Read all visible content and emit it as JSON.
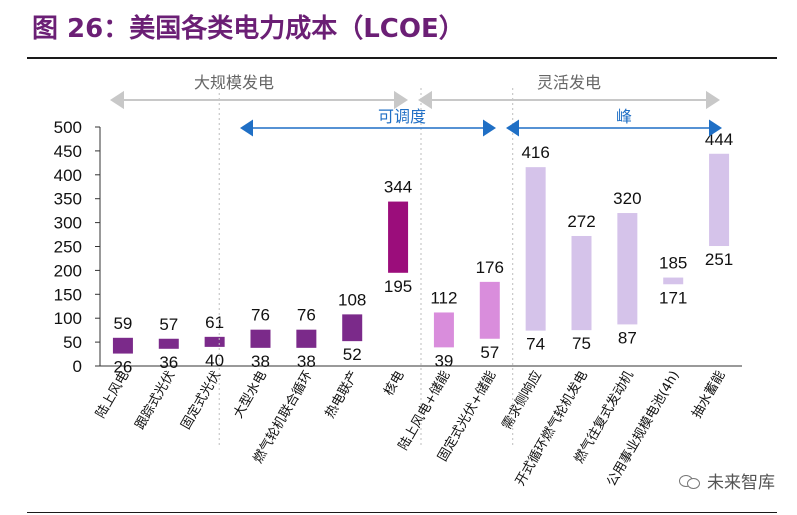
{
  "title": "图 26：美国各类电力成本（LCOE）",
  "watermark": "未来智库",
  "chart_data": {
    "type": "bar",
    "subtype": "floating range bar",
    "ylim": [
      0,
      500
    ],
    "yticks": [
      0,
      50,
      100,
      150,
      200,
      250,
      300,
      350,
      400,
      450,
      500
    ],
    "grid": false,
    "categories": [
      "陆上风电",
      "跟踪式光伏",
      "固定式光伏",
      "大型水电",
      "燃气轮机联合循环",
      "热电联产",
      "核电",
      "陆上风电+储能",
      "固定式光伏+储能",
      "需求侧响应",
      "开式循环燃气轮机发电",
      "燃气往复式发动机",
      "公用事业规模电池(4h)",
      "抽水蓄能"
    ],
    "series": [
      {
        "values_low": [
          26,
          36,
          40,
          38,
          38,
          52,
          195,
          39,
          57,
          74,
          75,
          87,
          171,
          251
        ],
        "values_high": [
          59,
          57,
          61,
          76,
          76,
          108,
          344,
          112,
          176,
          416,
          272,
          320,
          185,
          444
        ]
      }
    ],
    "colors": [
      "#7b2a8a",
      "#7b2a8a",
      "#7b2a8a",
      "#7b2a8a",
      "#7b2a8a",
      "#7b2a8a",
      "#9b0d7b",
      "#d98ddc",
      "#d98ddc",
      "#d5c3ea",
      "#d5c3ea",
      "#d5c3ea",
      "#d5c3ea",
      "#d5c3ea"
    ],
    "group_labels": {
      "large_scale": "大规模发电",
      "flexible": "灵活发电",
      "dispatchable": "可调度",
      "peak": "峰"
    },
    "group_colors": {
      "gray_arrow": "#c8c8c8",
      "blue_arrow": "#1f6fc5"
    }
  }
}
